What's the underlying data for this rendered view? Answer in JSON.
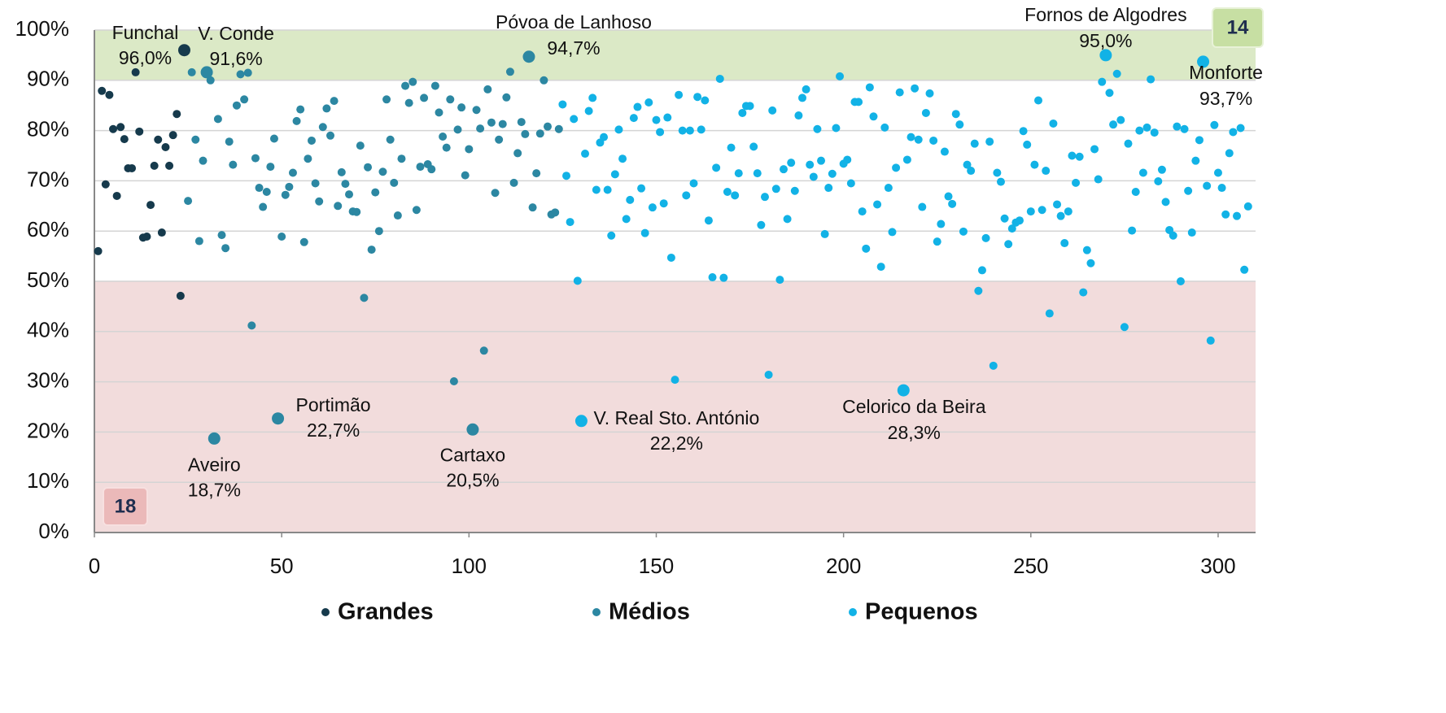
{
  "chart_data": {
    "type": "scatter",
    "xlim": [
      0,
      310
    ],
    "ylim": [
      0,
      100
    ],
    "xticks": [
      0,
      50,
      100,
      150,
      200,
      250,
      300
    ],
    "yticks": [
      {
        "value": 0,
        "label": "0%"
      },
      {
        "value": 10,
        "label": "10%"
      },
      {
        "value": 20,
        "label": "20%"
      },
      {
        "value": 30,
        "label": "30%"
      },
      {
        "value": 40,
        "label": "40%"
      },
      {
        "value": 50,
        "label": "50%"
      },
      {
        "value": 60,
        "label": "60%"
      },
      {
        "value": 70,
        "label": "70%"
      },
      {
        "value": 80,
        "label": "80%"
      },
      {
        "value": 90,
        "label": "90%"
      },
      {
        "value": 100,
        "label": "100%"
      }
    ],
    "grid": true,
    "legend": "bottom",
    "bands": [
      {
        "from": 90,
        "to": 100,
        "color": "#dbe9c6"
      },
      {
        "from": 0,
        "to": 50,
        "color": "#f2dcdc"
      }
    ],
    "counts": {
      "above": 14,
      "below": 18
    },
    "series": [
      {
        "name": "Grandes",
        "color": "#163a4c",
        "x": [
          1,
          2,
          3,
          4,
          5,
          6,
          7,
          8,
          9,
          10,
          11,
          12,
          13,
          14,
          15,
          16,
          17,
          18,
          19,
          20,
          21,
          22,
          23,
          24
        ],
        "values": [
          56.0,
          87.9,
          69.3,
          87.1,
          80.3,
          67.0,
          80.7,
          78.3,
          72.5,
          72.5,
          91.6,
          79.8,
          58.7,
          58.9,
          65.2,
          73.0,
          78.2,
          59.7,
          76.7,
          73.0,
          79.1,
          83.3,
          47.1,
          96.0
        ]
      },
      {
        "name": "Médios",
        "color": "#2c87a2",
        "x": [
          25,
          26,
          27,
          28,
          29,
          30,
          31,
          32,
          33,
          34,
          35,
          36,
          37,
          38,
          39,
          40,
          41,
          42,
          43,
          44,
          45,
          46,
          47,
          48,
          49,
          50,
          51,
          52,
          53,
          54,
          55,
          56,
          57,
          58,
          59,
          60,
          61,
          62,
          63,
          64,
          65,
          66,
          67,
          68,
          69,
          70,
          71,
          72,
          73,
          74,
          75,
          76,
          77,
          78,
          79,
          80,
          81,
          82,
          83,
          84,
          85,
          86,
          87,
          88,
          89,
          90,
          91,
          92,
          93,
          94,
          95,
          96,
          97,
          98,
          99,
          100,
          101,
          102,
          103,
          104,
          105,
          106,
          107,
          108,
          109,
          110,
          111,
          112,
          113,
          114,
          115,
          116,
          117,
          118,
          119,
          120,
          121,
          122,
          123,
          124
        ],
        "values": [
          66.0,
          91.6,
          78.2,
          58.0,
          74.0,
          91.6,
          90.0,
          18.7,
          82.3,
          59.2,
          56.6,
          77.8,
          73.2,
          85.0,
          91.2,
          86.2,
          91.5,
          41.2,
          74.5,
          68.6,
          64.8,
          67.8,
          72.8,
          78.4,
          22.7,
          58.9,
          67.2,
          68.8,
          71.6,
          81.9,
          84.2,
          57.8,
          74.4,
          78.0,
          69.5,
          65.9,
          80.7,
          84.4,
          79.0,
          85.9,
          65.0,
          71.7,
          69.4,
          67.3,
          63.9,
          63.8,
          77.0,
          46.7,
          72.7,
          56.3,
          67.7,
          60.0,
          71.8,
          86.2,
          78.2,
          69.6,
          63.1,
          74.4,
          88.9,
          85.5,
          89.7,
          64.2,
          72.8,
          86.5,
          73.3,
          72.3,
          88.9,
          83.6,
          78.8,
          76.6,
          86.2,
          30.1,
          80.2,
          84.6,
          71.1,
          76.3,
          20.5,
          84.1,
          80.4,
          36.2,
          88.2,
          81.6,
          67.6,
          78.2,
          81.3,
          86.6,
          91.7,
          69.6,
          75.5,
          81.7,
          79.3,
          94.7,
          64.7,
          71.5,
          79.4,
          90.0,
          80.8,
          63.3,
          63.7,
          80.3
        ]
      },
      {
        "name": "Pequenos",
        "color": "#12b2e6",
        "x": [
          125,
          126,
          127,
          128,
          129,
          130,
          131,
          132,
          133,
          134,
          135,
          136,
          137,
          138,
          139,
          140,
          141,
          142,
          143,
          144,
          145,
          146,
          147,
          148,
          149,
          150,
          151,
          152,
          153,
          154,
          155,
          156,
          157,
          158,
          159,
          160,
          161,
          162,
          163,
          164,
          165,
          166,
          167,
          168,
          169,
          170,
          171,
          172,
          173,
          174,
          175,
          176,
          177,
          178,
          179,
          180,
          181,
          182,
          183,
          184,
          185,
          186,
          187,
          188,
          189,
          190,
          191,
          192,
          193,
          194,
          195,
          196,
          197,
          198,
          199,
          200,
          201,
          202,
          203,
          204,
          205,
          206,
          207,
          208,
          209,
          210,
          211,
          212,
          213,
          214,
          215,
          216,
          217,
          218,
          219,
          220,
          221,
          222,
          223,
          224,
          225,
          226,
          227,
          228,
          229,
          230,
          231,
          232,
          233,
          234,
          235,
          236,
          237,
          238,
          239,
          240,
          241,
          242,
          243,
          244,
          245,
          246,
          247,
          248,
          249,
          250,
          251,
          252,
          253,
          254,
          255,
          256,
          257,
          258,
          259,
          260,
          261,
          262,
          263,
          264,
          265,
          266,
          267,
          268,
          269,
          270,
          271,
          272,
          273,
          274,
          275,
          276,
          277,
          278,
          279,
          280,
          281,
          282,
          283,
          284,
          285,
          286,
          287,
          288,
          289,
          290,
          291,
          292,
          293,
          294,
          295,
          296,
          297,
          298,
          299,
          300,
          301,
          302,
          303,
          304,
          305,
          306,
          307,
          308
        ],
        "values": [
          85.2,
          71.0,
          61.8,
          82.3,
          50.1,
          22.2,
          75.4,
          83.9,
          86.5,
          68.2,
          77.6,
          78.7,
          68.2,
          59.1,
          71.3,
          80.2,
          74.4,
          62.4,
          66.2,
          82.5,
          84.7,
          68.5,
          59.6,
          85.6,
          64.7,
          82.1,
          79.7,
          65.5,
          82.6,
          54.7,
          30.4,
          87.1,
          80.0,
          67.1,
          80.0,
          69.5,
          86.7,
          80.2,
          86.0,
          62.1,
          50.8,
          72.6,
          90.3,
          50.7,
          67.8,
          76.6,
          67.1,
          71.5,
          83.5,
          84.9,
          84.9,
          76.8,
          71.5,
          61.2,
          66.8,
          31.4,
          84.0,
          68.4,
          50.3,
          72.3,
          62.4,
          73.6,
          68.0,
          83.0,
          86.5,
          88.2,
          73.2,
          70.8,
          80.3,
          74.0,
          59.4,
          68.6,
          71.4,
          80.5,
          90.8,
          73.4,
          74.2,
          69.5,
          85.7,
          85.7,
          63.9,
          56.5,
          88.6,
          82.8,
          65.3,
          52.9,
          80.6,
          68.6,
          59.8,
          72.6,
          87.6,
          28.3,
          74.2,
          78.7,
          88.4,
          78.2,
          64.8,
          83.5,
          87.4,
          78.0,
          57.9,
          61.4,
          75.8,
          66.9,
          65.4,
          83.3,
          81.2,
          59.9,
          73.2,
          72.0,
          77.4,
          48.1,
          52.2,
          58.6,
          77.8,
          33.2,
          71.6,
          69.8,
          62.5,
          57.4,
          60.5,
          61.7,
          62.1,
          79.9,
          77.2,
          63.9,
          73.2,
          86.0,
          64.2,
          72.0,
          43.6,
          81.4,
          65.3,
          63.0,
          57.6,
          63.9,
          75.0,
          69.6,
          74.8,
          47.8,
          56.2,
          53.6,
          76.3,
          70.3,
          89.7,
          95.0,
          87.5,
          81.2,
          91.3,
          82.1,
          40.9,
          77.4,
          60.1,
          67.8,
          80.0,
          71.6,
          80.6,
          90.2,
          79.6,
          69.9,
          72.2,
          65.8,
          60.2,
          59.1,
          80.8,
          50.0,
          80.3,
          68.0,
          59.7,
          74.0,
          78.1,
          93.7,
          69.0,
          38.2,
          81.1,
          71.6,
          68.6,
          63.3,
          75.5,
          79.7,
          63.0,
          80.5,
          52.3,
          64.9
        ]
      }
    ],
    "annotations": [
      {
        "text": "Funchal",
        "label": "96,0%",
        "x": 24,
        "y": 96.0
      },
      {
        "text": "V. Conde",
        "label": "91,6%",
        "x": 30,
        "y": 91.6
      },
      {
        "text": "Póvoa de Lanhoso",
        "label": "94,7%",
        "x": 116,
        "y": 94.7
      },
      {
        "text": "Fornos de Algodres",
        "label": "95,0%",
        "x": 270,
        "y": 95.0
      },
      {
        "text": "Monforte",
        "label": "93,7%",
        "x": 296,
        "y": 93.7
      },
      {
        "text": "Aveiro",
        "label": "18,7%",
        "x": 32,
        "y": 18.7
      },
      {
        "text": "Portimão",
        "label": "22,7%",
        "x": 49,
        "y": 22.7
      },
      {
        "text": "Cartaxo",
        "label": "20,5%",
        "x": 101,
        "y": 20.5
      },
      {
        "text": "V. Real Sto. António",
        "label": "22,2%",
        "x": 130,
        "y": 22.2
      },
      {
        "text": "Celorico da Beira",
        "label": "28,3%",
        "x": 216,
        "y": 28.3
      }
    ]
  }
}
